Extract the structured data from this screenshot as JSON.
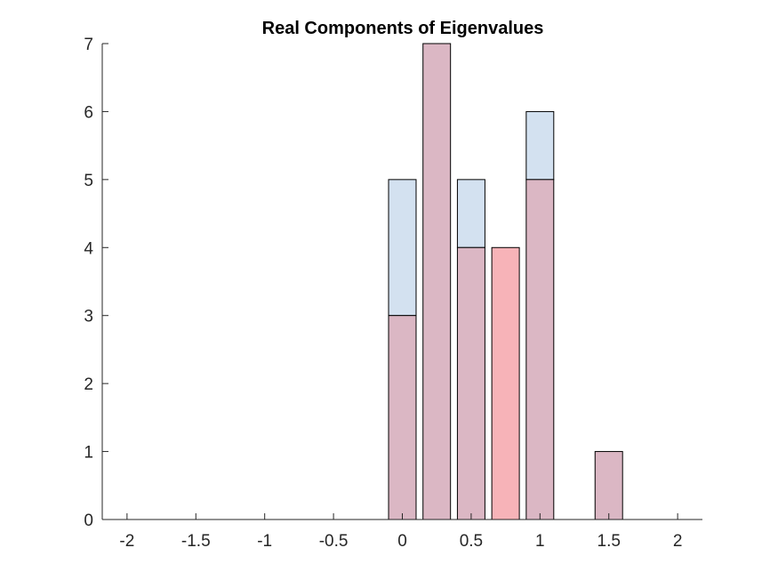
{
  "chart_data": {
    "type": "bar",
    "title": "Real Components of Eigenvalues",
    "xlabel": "",
    "ylabel": "",
    "xlim": [
      -2.18,
      2.18
    ],
    "ylim": [
      0,
      7
    ],
    "xticks": [
      -2,
      -1.5,
      -1,
      -0.5,
      0,
      0.5,
      1,
      1.5,
      2
    ],
    "xtick_labels": [
      "-2",
      "-1.5",
      "-1",
      "-0.5",
      "0",
      "0.5",
      "1",
      "1.5",
      "2"
    ],
    "yticks": [
      0,
      1,
      2,
      3,
      4,
      5,
      6,
      7
    ],
    "ytick_labels": [
      "0",
      "1",
      "2",
      "3",
      "4",
      "5",
      "6",
      "7"
    ],
    "bin_centers": [
      -2,
      -1.75,
      -1.5,
      -1.25,
      -1,
      -0.75,
      -0.5,
      -0.25,
      0,
      0.25,
      0.5,
      0.75,
      1,
      1.25,
      1.5,
      1.75,
      2
    ],
    "bar_width": 0.2,
    "grid": false,
    "legend": "none",
    "series": [
      {
        "values": [
          0,
          0,
          0,
          0,
          0,
          0,
          0,
          0,
          5,
          7,
          5,
          0,
          6,
          0,
          1,
          0,
          0
        ],
        "color": "#d3e1f0"
      },
      {
        "values": [
          0,
          0,
          0,
          0,
          0,
          0,
          0,
          0,
          3,
          7,
          4,
          4,
          5,
          0,
          1,
          0,
          0
        ],
        "color": "#f7b3b8"
      }
    ],
    "overlap_color": "#dbb7c4",
    "edge_color": "#000000",
    "axis_color": "#262626"
  }
}
